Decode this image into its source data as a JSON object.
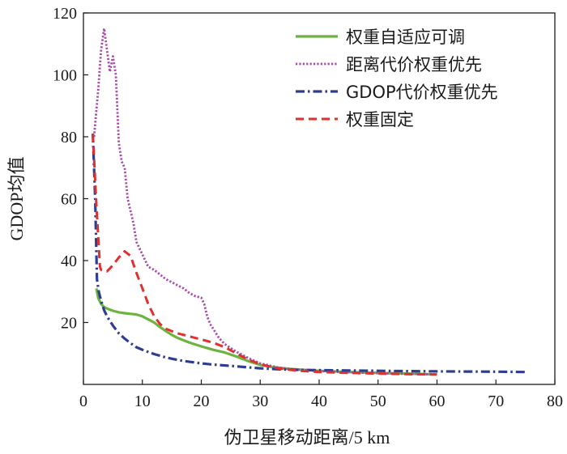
{
  "chart_data": {
    "type": "line",
    "title": "",
    "xlabel": "伪卫星移动距离/5 km",
    "ylabel": "GDOP均值",
    "xlim": [
      0,
      80
    ],
    "ylim": [
      0,
      120
    ],
    "xticks": [
      0,
      10,
      20,
      30,
      40,
      50,
      60,
      70,
      80
    ],
    "yticks": [
      20,
      40,
      60,
      80,
      100,
      120
    ],
    "legend_position": "top-right",
    "series": [
      {
        "name": "权重自适应可调",
        "color": "#6cb33f",
        "dash": "solid",
        "x": [
          2.2,
          2.5,
          3.0,
          3.5,
          4.0,
          5.0,
          6.0,
          7.0,
          8.0,
          9.0,
          10.0,
          11.0,
          12.0,
          13.0,
          14.0,
          15.0,
          16.0,
          18.0,
          20.0,
          22.0,
          24.0,
          26.0,
          28.0,
          30.0,
          32.0,
          35.0,
          40.0,
          45.0,
          50.0,
          55.0,
          60.0
        ],
        "y": [
          31.0,
          28.0,
          26.0,
          25.0,
          24.5,
          23.8,
          23.3,
          23.0,
          22.8,
          22.6,
          22.0,
          21.0,
          20.0,
          18.5,
          17.2,
          16.0,
          15.0,
          13.5,
          12.3,
          11.2,
          10.3,
          9.0,
          7.5,
          6.3,
          5.6,
          5.0,
          4.4,
          4.0,
          3.7,
          3.5,
          3.2
        ]
      },
      {
        "name": "距离代价权重优先",
        "color": "#a64ca6",
        "dash": "dot",
        "x": [
          1.8,
          2.5,
          3.0,
          3.5,
          4.0,
          4.5,
          5.0,
          5.5,
          6.0,
          6.5,
          7.0,
          7.5,
          8.0,
          8.5,
          9.0,
          10.0,
          11.0,
          12.0,
          13.0,
          14.0,
          15.0,
          16.0,
          17.0,
          18.0,
          19.0,
          20.0,
          20.5,
          21.0,
          21.5,
          22.0,
          23.0,
          24.0,
          26.0,
          28.0,
          30.0,
          33.0,
          36.0,
          40.0,
          45.0,
          50.0,
          55.0,
          60.0
        ],
        "y": [
          80.0,
          95.0,
          108.0,
          115.0,
          108.0,
          101.0,
          106.0,
          100.0,
          78.0,
          72.0,
          70.0,
          60.0,
          56.0,
          52.0,
          46.0,
          42.0,
          38.0,
          37.0,
          35.5,
          34.0,
          33.0,
          32.0,
          31.0,
          29.5,
          28.5,
          28.0,
          26.0,
          22.0,
          19.5,
          18.0,
          15.0,
          13.0,
          10.5,
          8.5,
          6.8,
          5.5,
          4.8,
          4.3,
          3.9,
          3.6,
          3.4,
          3.3
        ]
      },
      {
        "name": "GDOP代价权重优先",
        "color": "#2e3d8f",
        "dash": "dashdot",
        "x": [
          1.6,
          2.0,
          2.3,
          2.6,
          3.0,
          3.5,
          4.0,
          5.0,
          6.0,
          7.0,
          8.0,
          9.0,
          10.0,
          12.0,
          14.0,
          16.0,
          18.0,
          20.0,
          22.0,
          25.0,
          28.0,
          30.0,
          33.0,
          36.0,
          40.0,
          45.0,
          50.0,
          55.0,
          60.0,
          65.0,
          70.0,
          75.0
        ],
        "y": [
          81.0,
          60.0,
          34.0,
          30.0,
          27.0,
          24.0,
          22.0,
          19.0,
          16.5,
          14.8,
          13.3,
          12.0,
          11.2,
          9.8,
          8.7,
          7.9,
          7.3,
          6.8,
          6.4,
          6.0,
          5.5,
          5.2,
          4.9,
          4.7,
          4.6,
          4.5,
          4.4,
          4.3,
          4.2,
          4.15,
          4.1,
          4.0
        ]
      },
      {
        "name": "权重固定",
        "color": "#e03030",
        "dash": "dash",
        "x": [
          1.6,
          2.2,
          2.8,
          3.0,
          3.5,
          4.0,
          5.0,
          6.0,
          7.0,
          8.0,
          9.0,
          10.0,
          11.0,
          12.0,
          13.0,
          14.0,
          15.0,
          16.0,
          18.0,
          20.0,
          22.0,
          24.0,
          26.0,
          28.0,
          30.0,
          33.0,
          36.0,
          40.0,
          45.0,
          50.0,
          55.0,
          60.0
        ],
        "y": [
          81.0,
          58.0,
          38.0,
          37.0,
          36.5,
          36.5,
          38.5,
          41.0,
          43.0,
          41.5,
          36.0,
          31.0,
          26.0,
          22.0,
          19.5,
          18.0,
          17.2,
          16.5,
          15.5,
          14.5,
          13.5,
          12.0,
          10.0,
          8.0,
          6.5,
          5.2,
          4.5,
          4.0,
          3.7,
          3.5,
          3.3,
          3.2
        ]
      }
    ]
  }
}
